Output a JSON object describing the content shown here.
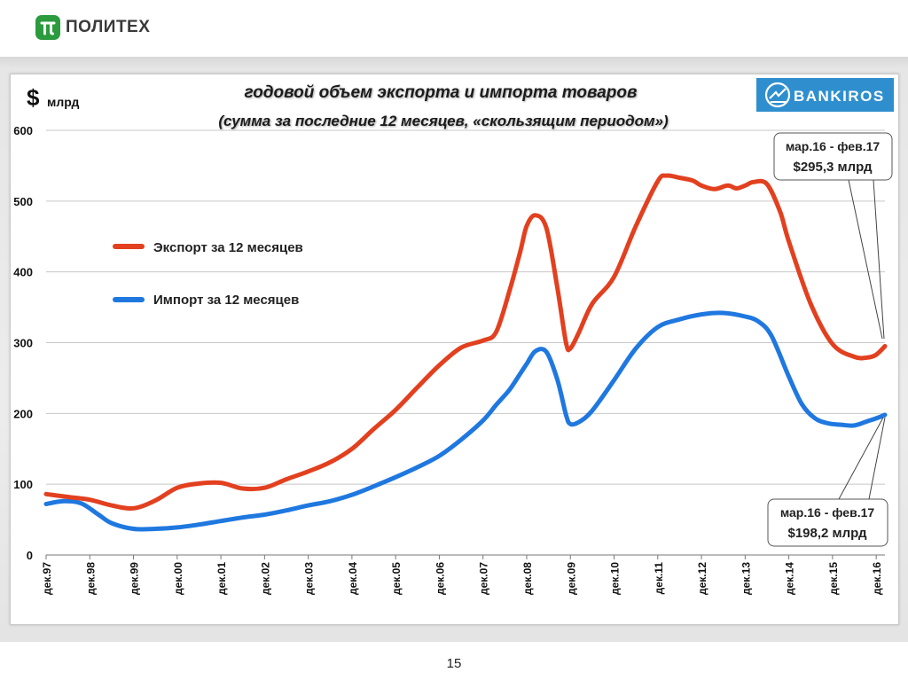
{
  "header": {
    "logo_text": "ПОЛИТЕХ"
  },
  "brand": {
    "name": "BANKIROS",
    "color": "#2f8fce"
  },
  "footer": {
    "page_number": "15"
  },
  "colors": {
    "export": "#e2401f",
    "import": "#1f78e0",
    "logo_green": "#2b9b3e"
  },
  "chart_data": {
    "type": "line",
    "title": "годовой объем экспорта и импорта товаров",
    "subtitle": "(сумма за последние  12 месяцев, «скользящим  периодом»)",
    "ylabel_symbol": "$",
    "ylabel": "млрд",
    "ylim": [
      0,
      600
    ],
    "yticks": [
      "0",
      "100",
      "200",
      "300",
      "400",
      "500",
      "600"
    ],
    "x_labels": [
      "дек.97",
      "дек.98",
      "дек.99",
      "дек.00",
      "дек.01",
      "дек.02",
      "дек.03",
      "дек.04",
      "дек.05",
      "дек.06",
      "дек.07",
      "дек.08",
      "дек.09",
      "дек.10",
      "дек.11",
      "дек.12",
      "дек.13",
      "дек.14",
      "дек.15",
      "дек.16"
    ],
    "xlim": [
      0,
      19.2
    ],
    "grid": "horizontal",
    "series": [
      {
        "name": "Экспорт за 12 месяцев",
        "color": "#e2401f",
        "x": [
          0,
          0.5,
          1.0,
          1.5,
          2.0,
          2.5,
          3.0,
          3.5,
          4.0,
          4.5,
          5.0,
          5.5,
          6.0,
          6.5,
          7.0,
          7.5,
          8.0,
          8.5,
          9.0,
          9.5,
          10.0,
          10.3,
          10.6,
          10.85,
          11.0,
          11.2,
          11.45,
          11.7,
          11.9,
          12.0,
          12.2,
          12.5,
          13.0,
          13.5,
          14.0,
          14.2,
          14.5,
          14.8,
          15.0,
          15.3,
          15.6,
          15.8,
          16.0,
          16.2,
          16.5,
          16.8,
          17.0,
          17.5,
          18.0,
          18.5,
          18.8,
          19.0,
          19.2
        ],
        "values": [
          86,
          82,
          78,
          70,
          66,
          77,
          95,
          101,
          102,
          94,
          95,
          107,
          118,
          131,
          150,
          178,
          205,
          237,
          268,
          293,
          303,
          315,
          372,
          428,
          465,
          480,
          462,
          378,
          300,
          292,
          315,
          355,
          393,
          465,
          528,
          536,
          533,
          529,
          522,
          517,
          522,
          518,
          522,
          527,
          524,
          485,
          443,
          355,
          298,
          280,
          279,
          283,
          295
        ]
      },
      {
        "name": "Импорт за 12 месяцев",
        "color": "#1f78e0",
        "x": [
          0,
          0.4,
          0.8,
          1.2,
          1.5,
          2.0,
          2.5,
          3.0,
          3.5,
          4.0,
          4.5,
          5.0,
          5.5,
          6.0,
          6.5,
          7.0,
          7.5,
          8.0,
          8.5,
          9.0,
          9.5,
          10.0,
          10.3,
          10.6,
          10.85,
          11.0,
          11.2,
          11.45,
          11.7,
          11.9,
          12.0,
          12.2,
          12.5,
          13.0,
          13.5,
          14.0,
          14.5,
          15.0,
          15.5,
          16.0,
          16.3,
          16.6,
          17.0,
          17.3,
          17.6,
          17.9,
          18.2,
          18.5,
          18.8,
          19.0,
          19.2
        ],
        "values": [
          72,
          76,
          73,
          57,
          45,
          37,
          37,
          39,
          43,
          48,
          53,
          57,
          63,
          70,
          76,
          85,
          97,
          110,
          124,
          140,
          163,
          190,
          212,
          233,
          256,
          270,
          288,
          287,
          248,
          198,
          185,
          188,
          204,
          247,
          292,
          322,
          333,
          340,
          342,
          337,
          330,
          310,
          252,
          213,
          193,
          186,
          184,
          183,
          189,
          193,
          198
        ]
      }
    ],
    "annotations": [
      {
        "series": "export",
        "line1": "мар.16 - фев.17",
        "line2": "$295,3 млрд",
        "x": 19.2,
        "value": 295.3
      },
      {
        "series": "import",
        "line1": "мар.16 - фев.17",
        "line2": "$198,2 млрд",
        "x": 19.2,
        "value": 198.2
      }
    ]
  }
}
